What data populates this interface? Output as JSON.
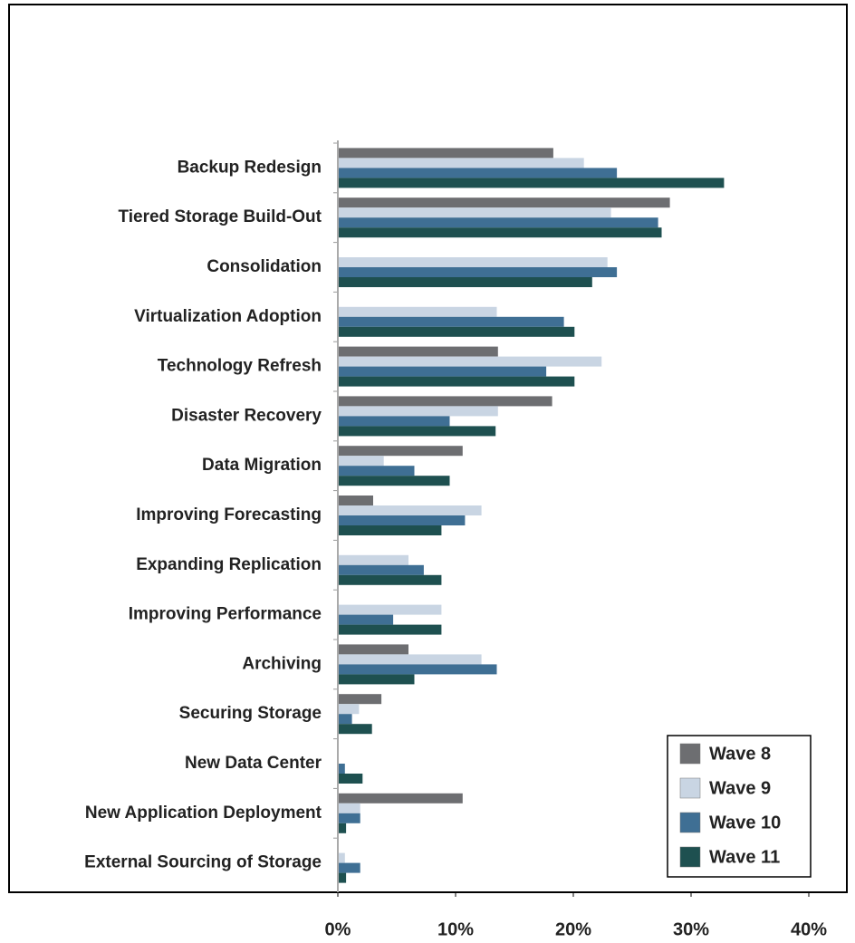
{
  "chart_data": {
    "type": "hbar",
    "categories": [
      "Backup Redesign",
      "Tiered Storage Build-Out",
      "Consolidation",
      "Virtualization Adoption",
      "Technology Refresh",
      "Disaster Recovery",
      "Data Migration",
      "Improving Forecasting",
      "Expanding Replication",
      "Improving Performance",
      "Archiving",
      "Securing Storage",
      "New Data Center",
      "New Application Deployment",
      "External Sourcing of Storage"
    ],
    "series": [
      {
        "name": "Wave 8",
        "color": "#6d6e71",
        "values": [
          18.3,
          28.2,
          0,
          0,
          13.6,
          18.2,
          10.6,
          3.0,
          0,
          0,
          6.0,
          3.7,
          0,
          10.6,
          0
        ]
      },
      {
        "name": "Wave 9",
        "color": "#c9d5e3",
        "values": [
          20.9,
          23.2,
          22.9,
          13.5,
          22.4,
          13.6,
          3.9,
          12.2,
          6.0,
          8.8,
          12.2,
          1.8,
          0,
          1.9,
          0.6
        ]
      },
      {
        "name": "Wave 10",
        "color": "#3f6f94",
        "values": [
          23.7,
          27.2,
          23.7,
          19.2,
          17.7,
          9.5,
          6.5,
          10.8,
          7.3,
          4.7,
          13.5,
          1.2,
          0.6,
          1.9,
          1.9
        ]
      },
      {
        "name": "Wave 11",
        "color": "#1e5050",
        "values": [
          32.8,
          27.5,
          21.6,
          20.1,
          20.1,
          13.4,
          9.5,
          8.8,
          8.8,
          8.8,
          6.5,
          2.9,
          2.1,
          0.7,
          0.7
        ]
      }
    ],
    "xlim": [
      0,
      40
    ],
    "xticks": [
      {
        "value": 0,
        "label": "0%"
      },
      {
        "value": 10,
        "label": "10%"
      },
      {
        "value": 20,
        "label": "20%"
      },
      {
        "value": 30,
        "label": "30%"
      },
      {
        "value": 40,
        "label": "40%"
      }
    ],
    "legend": "lower right"
  }
}
